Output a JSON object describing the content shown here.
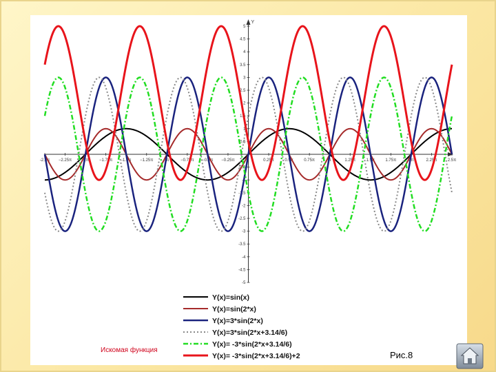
{
  "caption": "Искомая функция",
  "figure_label": "Рис.8",
  "home_icon": "house-icon",
  "chart_data": {
    "type": "line",
    "xlabel": "X",
    "ylabel": "Y",
    "xlim": [
      -2.5,
      2.5
    ],
    "ylim": [
      -5,
      5
    ],
    "x_unit": "π",
    "x_ticks": [
      -2.5,
      -2.25,
      -2,
      -1.75,
      -1.5,
      -1.25,
      -1,
      -0.75,
      -0.5,
      -0.25,
      0.25,
      0.5,
      0.75,
      1,
      1.25,
      1.5,
      1.75,
      2,
      2.25,
      2.5
    ],
    "x_tick_labels": [
      "-2.5π",
      "−2.25π",
      "-2π",
      "−1.75π",
      "-1.5π",
      "−1.25π",
      "-π",
      "−0.75π",
      "−0.5π",
      "−0.25π",
      "0.25π",
      "0.5π",
      "0.75π",
      "π",
      "1.25π",
      "1.5π",
      "1.75π",
      "2π",
      "2.25π",
      "2.5π"
    ],
    "y_ticks": [
      5,
      4.5,
      4,
      3.5,
      3,
      2.5,
      2,
      1.5,
      1,
      0.5,
      -0.5,
      -1,
      -1.5,
      -2,
      -2.5,
      -3,
      -3.5,
      -4,
      -4.5,
      -5
    ],
    "y_tick_labels": [
      "5",
      "4.5",
      "4",
      "3.5",
      "3",
      "2.5",
      "2",
      "1.5",
      "1",
      "0.5",
      "-0.5",
      "-1",
      "-1.5",
      "-2",
      "-2.5",
      "-3",
      "-3.5",
      "-4",
      "-4.5",
      "-5"
    ],
    "grid": false,
    "legend": "bottom-center",
    "series": [
      {
        "name": "Y(x)=sin(x)",
        "amplitude": 1,
        "frequency": 1,
        "phase": 0,
        "offset": 0,
        "color": "#000000",
        "dash": "solid",
        "linewidth": 2
      },
      {
        "name": "Y(x)=sin(2*x)",
        "amplitude": 1,
        "frequency": 2,
        "phase": 0,
        "offset": 0,
        "color": "#a52a2a",
        "dash": "solid",
        "linewidth": 2
      },
      {
        "name": "Y(x)=3*sin(2*x)",
        "amplitude": 3,
        "frequency": 2,
        "phase": 0,
        "offset": 0,
        "color": "#1a237e",
        "dash": "solid",
        "linewidth": 2.5
      },
      {
        "name": "Y(x)=3*sin(2*x+3.14/6)",
        "amplitude": 3,
        "frequency": 2,
        "phase": 0.5233,
        "offset": 0,
        "color": "#888888",
        "dash": "dotted",
        "linewidth": 2
      },
      {
        "name": "Y(x)= -3*sin(2*x+3.14/6)",
        "amplitude": -3,
        "frequency": 2,
        "phase": 0.5233,
        "offset": 0,
        "color": "#22dd22",
        "dash": "dashdot",
        "linewidth": 2.5
      },
      {
        "name": "Y(x)= -3*sin(2*x+3.14/6)+2",
        "amplitude": -3,
        "frequency": 2,
        "phase": 0.5233,
        "offset": 2,
        "color": "#e8141b",
        "dash": "solid",
        "linewidth": 3
      }
    ]
  }
}
